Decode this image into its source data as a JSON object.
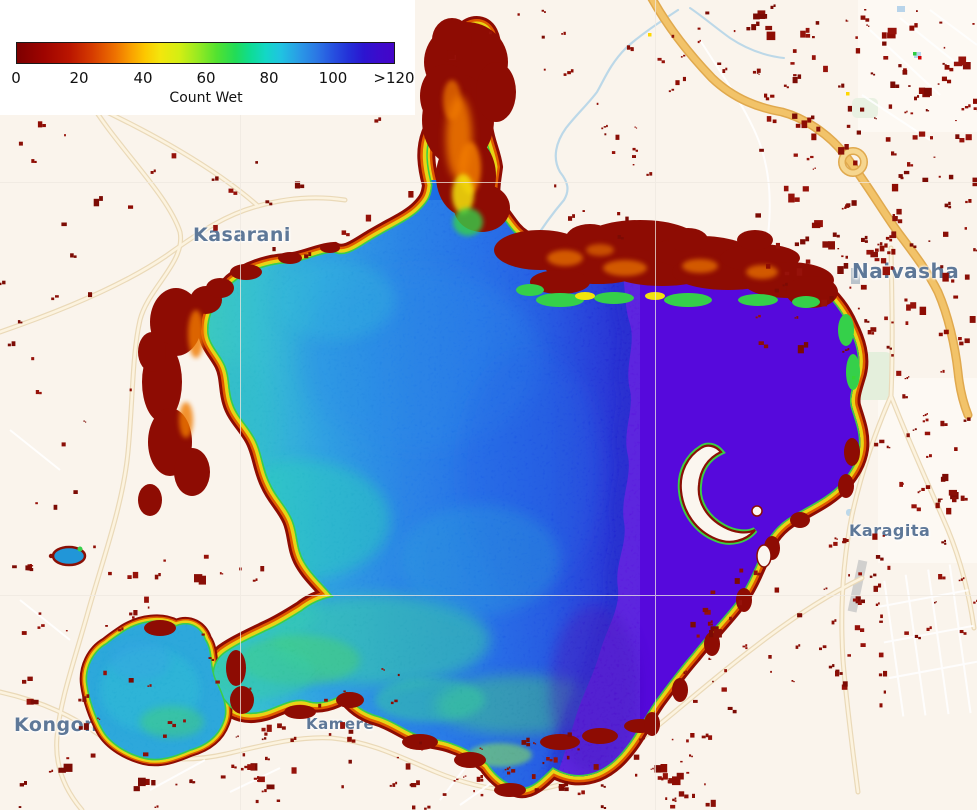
{
  "map": {
    "labels": [
      {
        "name": "Kasarani"
      },
      {
        "name": "Naivasha"
      },
      {
        "name": "Karagita"
      },
      {
        "name": "Kamere"
      },
      {
        "name": "Kongoni"
      }
    ]
  },
  "legend": {
    "title": "Count Wet",
    "ticks": [
      "0",
      "20",
      "40",
      "60",
      "80",
      "100",
      ">120"
    ],
    "colormap": [
      [
        0,
        "#7d0000"
      ],
      [
        7,
        "#9e0400"
      ],
      [
        14,
        "#ba1500"
      ],
      [
        20,
        "#d63c00"
      ],
      [
        26,
        "#ee7100"
      ],
      [
        30,
        "#f99e00"
      ],
      [
        34,
        "#fcc800"
      ],
      [
        38,
        "#f3e60d"
      ],
      [
        43,
        "#d4ee13"
      ],
      [
        48,
        "#97ea22"
      ],
      [
        53,
        "#52e230"
      ],
      [
        58,
        "#21dc58"
      ],
      [
        62,
        "#0edc95"
      ],
      [
        66,
        "#13d7c6"
      ],
      [
        70,
        "#20c3e1"
      ],
      [
        75,
        "#2a9ae6"
      ],
      [
        80,
        "#2b73e4"
      ],
      [
        84,
        "#264fdf"
      ],
      [
        88,
        "#2430d8"
      ],
      [
        92,
        "#2c15d0"
      ],
      [
        96,
        "#3c0bcc"
      ],
      [
        100,
        "#4405c8"
      ]
    ]
  },
  "colors": {
    "background": "#faf4ec",
    "lake_peak_purple": "#5609dc",
    "speckle_red": "#8a0f07",
    "road_trunk": "#f2c369",
    "road_minor": "#f7ecd2",
    "stream_blue": "#bcd8e8",
    "place_label": "#5e7898",
    "gridline": "#efe9e1"
  }
}
